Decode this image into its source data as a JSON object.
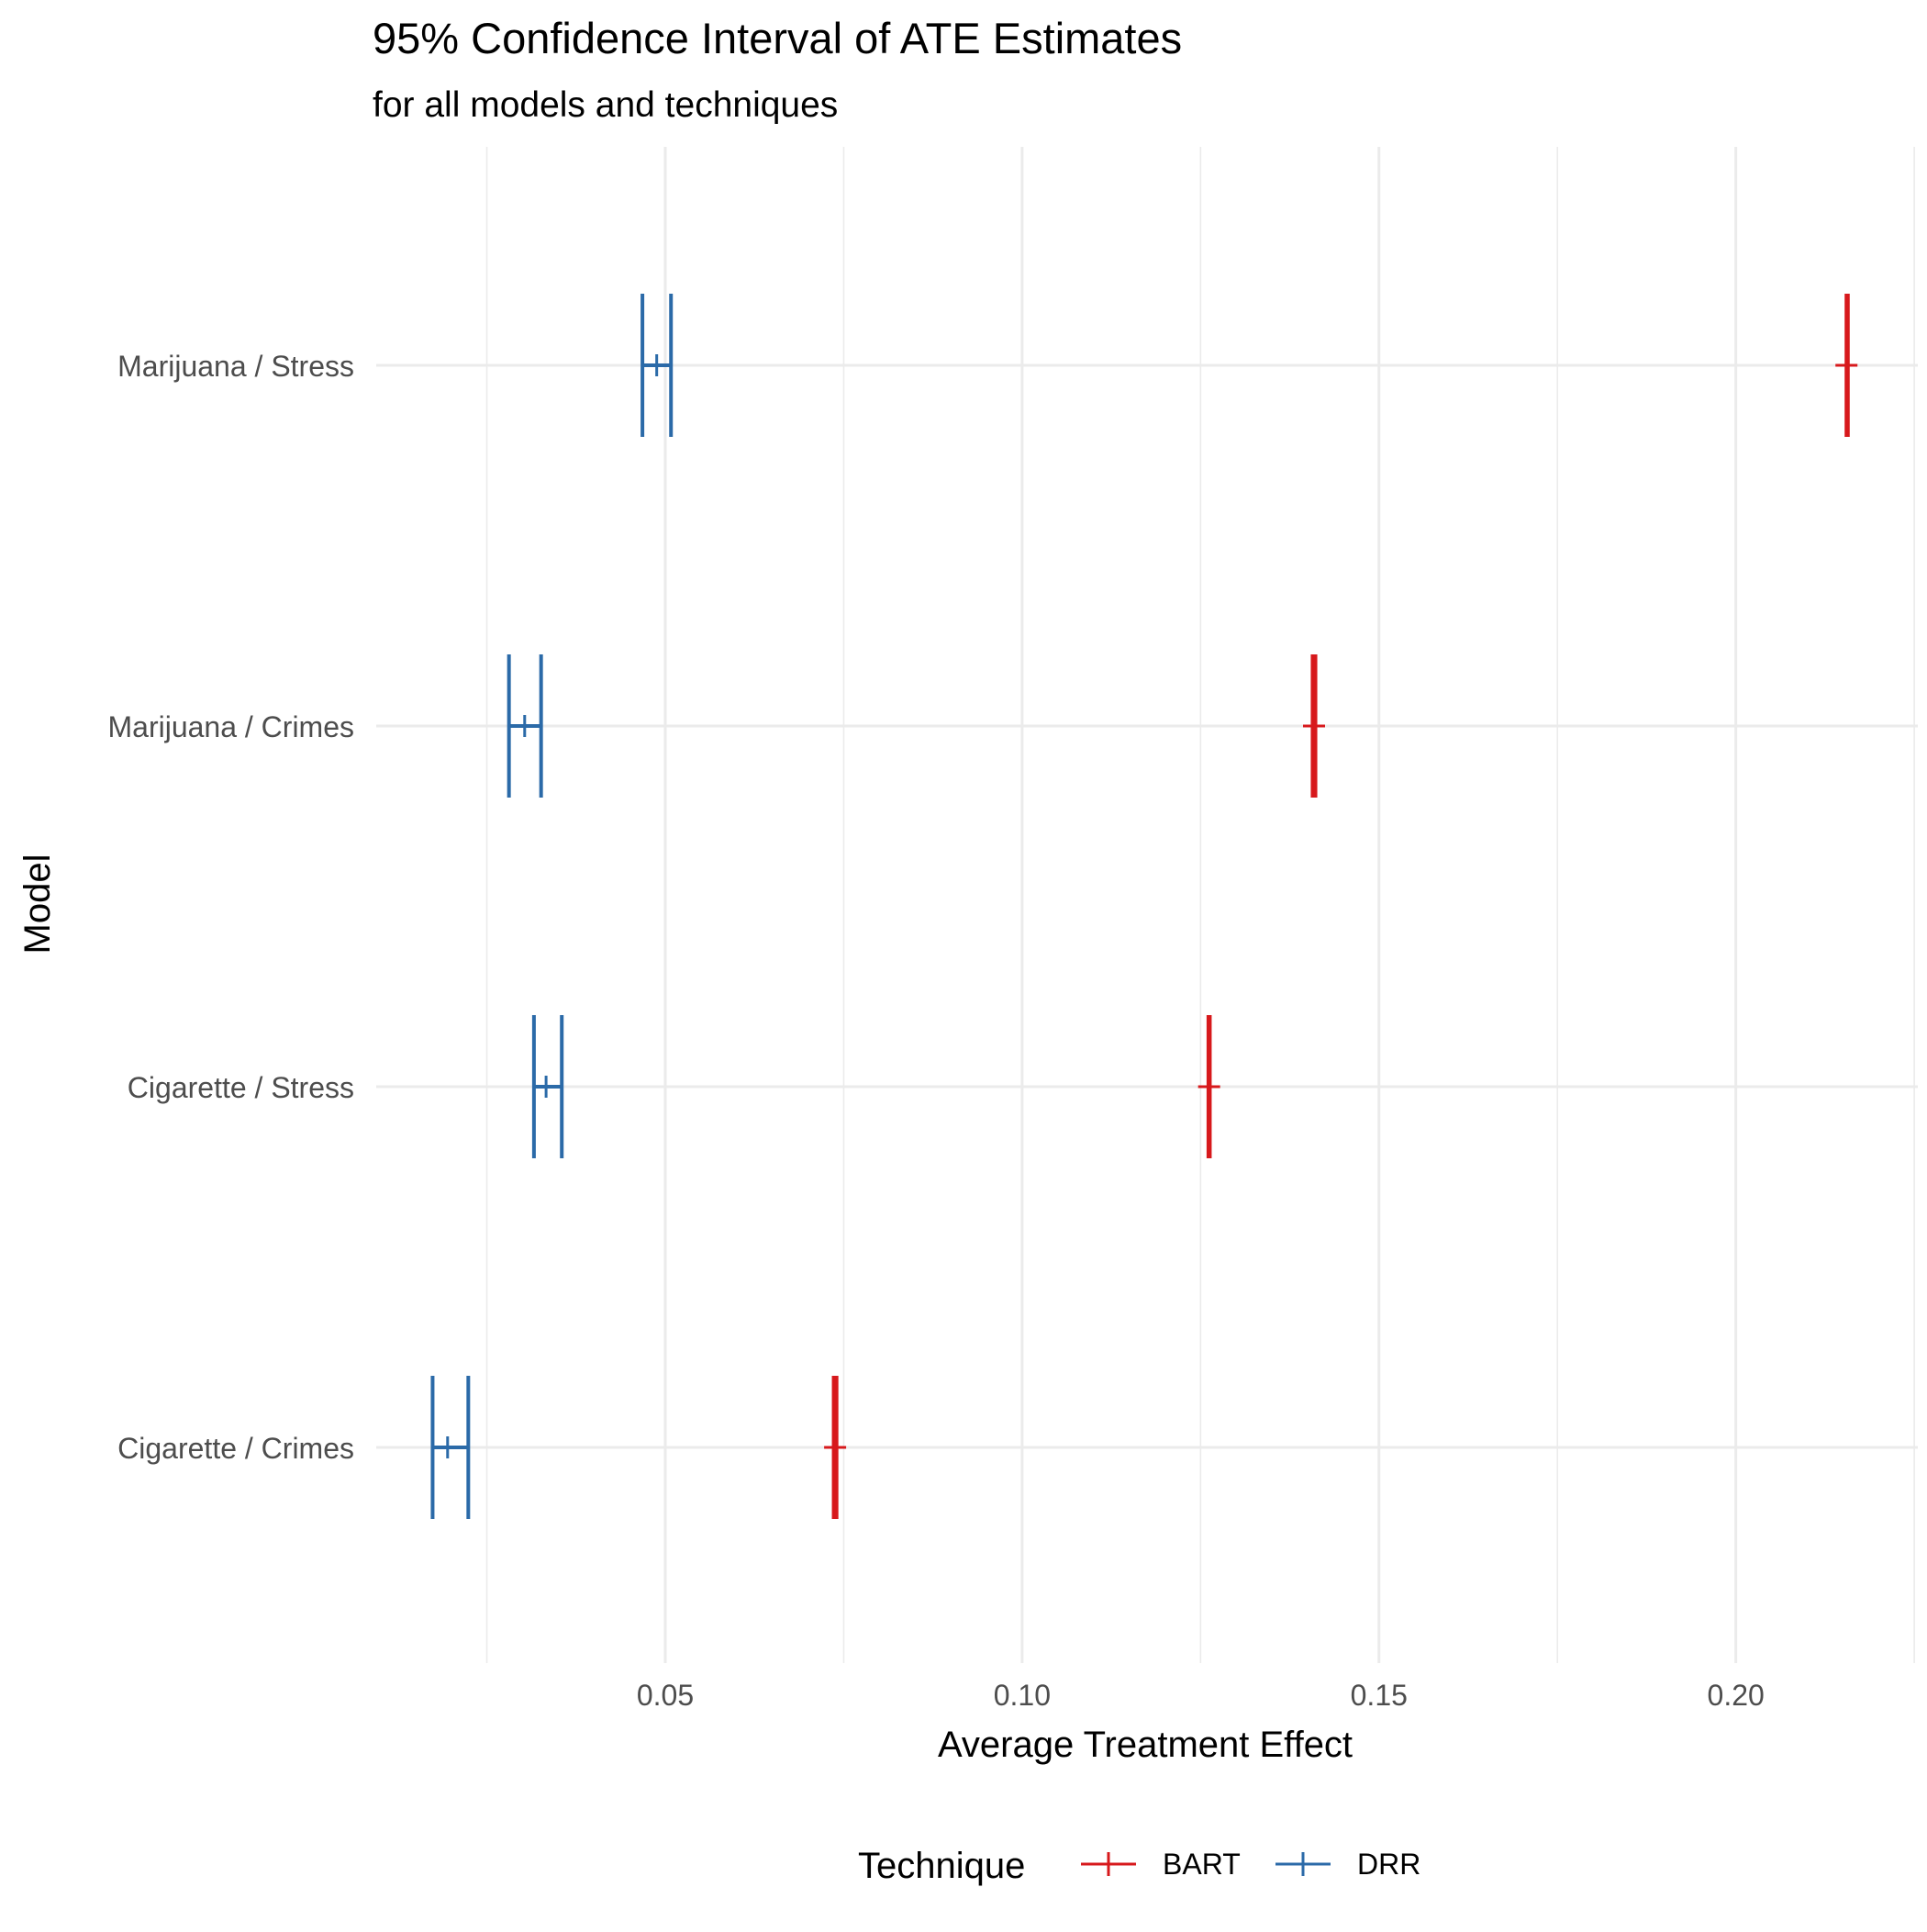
{
  "chart_data": {
    "type": "errorbar",
    "title": "95% Confidence Interval of ATE Estimates",
    "subtitle": "for all models and techniques",
    "xlabel": "Average Treatment Effect",
    "ylabel": "Model",
    "xlim": [
      0.0095,
      0.2255
    ],
    "x_ticks": [
      0.05,
      0.1,
      0.15,
      0.2
    ],
    "x_tick_labels": [
      "0.05",
      "0.10",
      "0.15",
      "0.20"
    ],
    "x_minor_ticks": [
      0.025,
      0.075,
      0.125,
      0.175,
      0.225
    ],
    "categories": [
      "Marijuana / Stress",
      "Marijuana / Crimes",
      "Cigarette / Stress",
      "Cigarette / Crimes"
    ],
    "grid": true,
    "legend": {
      "title": "Technique",
      "position": "bottom",
      "entries": [
        "BART",
        "DRR"
      ]
    },
    "series": [
      {
        "name": "BART",
        "color": "#d7191c",
        "points": [
          {
            "category": "Marijuana / Stress",
            "estimate": 0.2155,
            "lower": 0.2155,
            "upper": 0.2157
          },
          {
            "category": "Marijuana / Crimes",
            "estimate": 0.1409,
            "lower": 0.1407,
            "upper": 0.1411
          },
          {
            "category": "Cigarette / Stress",
            "estimate": 0.1262,
            "lower": 0.1261,
            "upper": 0.1263
          },
          {
            "category": "Cigarette / Crimes",
            "estimate": 0.0738,
            "lower": 0.0736,
            "upper": 0.074
          }
        ]
      },
      {
        "name": "DRR",
        "color": "#2b6aa8",
        "points": [
          {
            "category": "Marijuana / Stress",
            "estimate": 0.0488,
            "lower": 0.0468,
            "upper": 0.0508
          },
          {
            "category": "Marijuana / Crimes",
            "estimate": 0.0303,
            "lower": 0.0281,
            "upper": 0.0326
          },
          {
            "category": "Cigarette / Stress",
            "estimate": 0.0333,
            "lower": 0.0316,
            "upper": 0.0355
          },
          {
            "category": "Cigarette / Crimes",
            "estimate": 0.0195,
            "lower": 0.0174,
            "upper": 0.0224
          }
        ]
      }
    ]
  }
}
